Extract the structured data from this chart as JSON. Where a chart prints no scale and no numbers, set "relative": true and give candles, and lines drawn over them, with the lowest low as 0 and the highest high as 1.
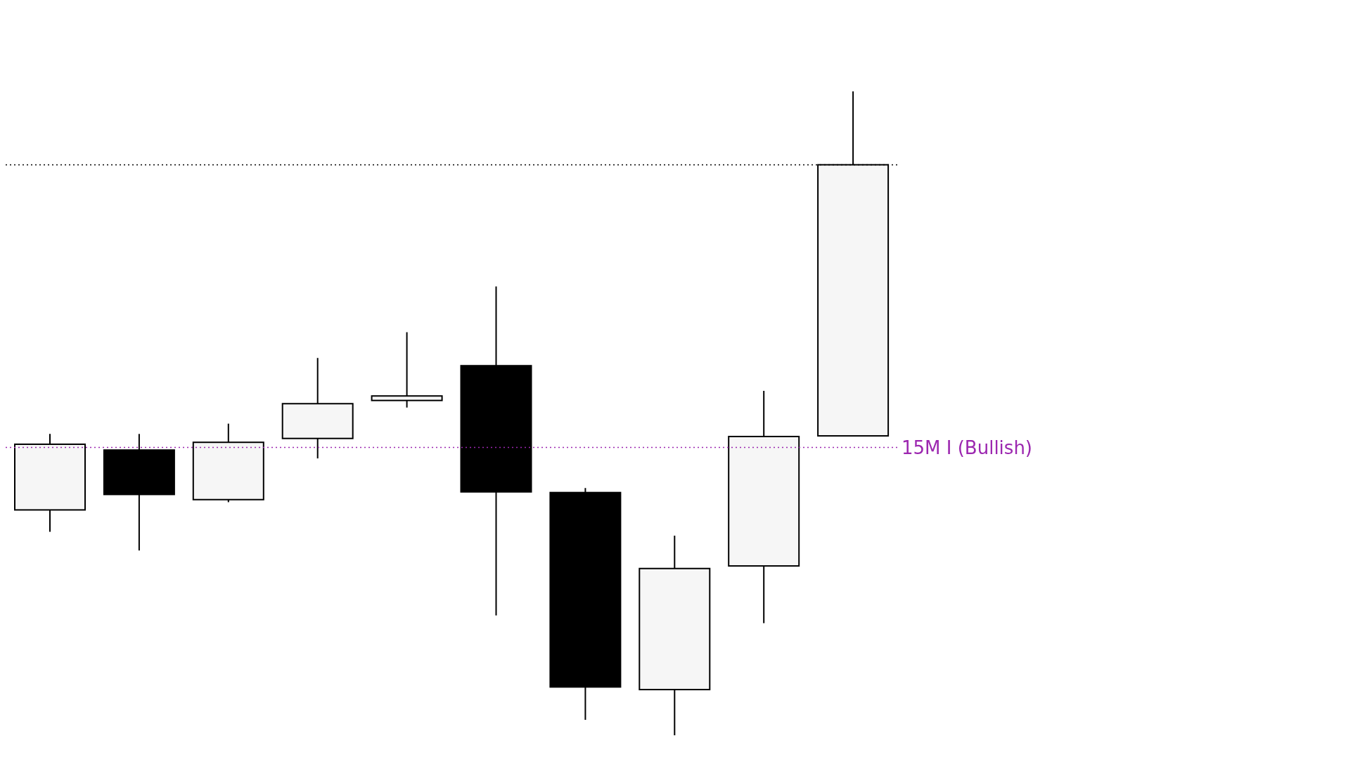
{
  "chart_data": {
    "type": "candlestick",
    "relative": true,
    "categories": [
      null,
      null,
      null,
      null,
      null,
      null,
      null,
      null,
      null,
      null
    ],
    "ohlc": [
      [
        0.35,
        0.468,
        0.316,
        0.452
      ],
      [
        0.443,
        0.468,
        0.287,
        0.374
      ],
      [
        0.366,
        0.484,
        0.362,
        0.455
      ],
      [
        0.461,
        0.586,
        0.43,
        0.515
      ],
      [
        0.52,
        0.626,
        0.509,
        0.527
      ],
      [
        0.574,
        0.697,
        0.186,
        0.378
      ],
      [
        0.377,
        0.384,
        0.024,
        0.075
      ],
      [
        0.071,
        0.31,
        0,
        0.259
      ],
      [
        0.263,
        0.535,
        0.174,
        0.464
      ],
      [
        0.465,
        1,
        0.465,
        0.886
      ]
    ],
    "ref_lines": [
      {
        "axis": "y",
        "value": 0.886,
        "color": "#000000",
        "line_style": "dotted"
      },
      {
        "axis": "y",
        "value": 0.447,
        "label": "15M I (Bullish)",
        "color": "#9c27b0",
        "line_style": "dotted"
      }
    ]
  }
}
